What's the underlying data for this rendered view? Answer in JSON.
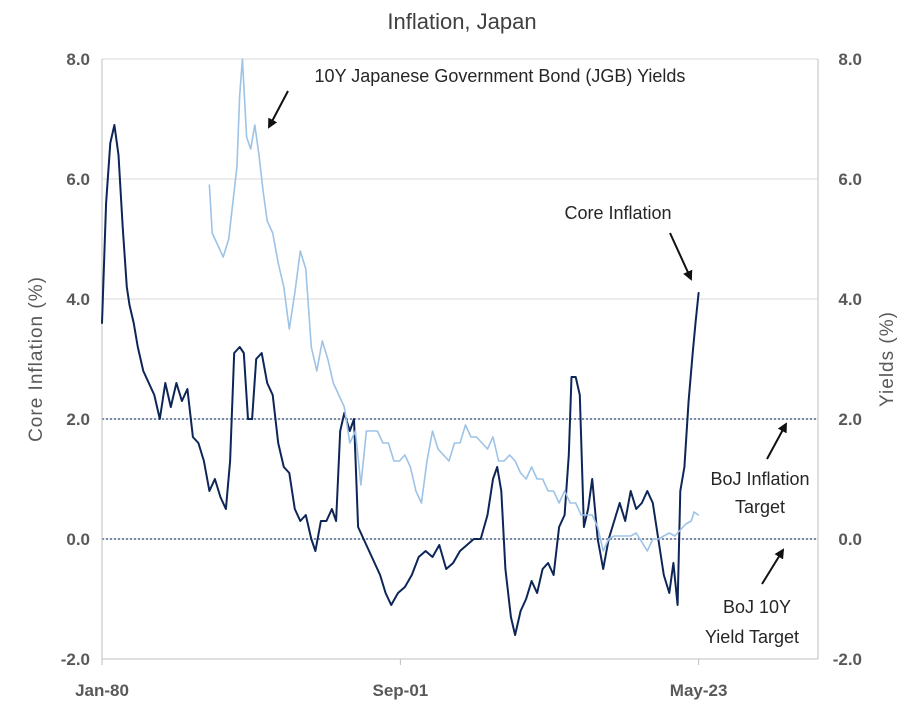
{
  "chart_data": {
    "type": "line",
    "title": "Inflation, Japan",
    "ylabel_left": "Core  Inflation  (%)",
    "ylabel_right": "Yields  (%)",
    "ylim": [
      -2.0,
      8.0
    ],
    "yticks_left": [
      "8.0",
      "6.0",
      "4.0",
      "2.0",
      "0.0",
      "-2.0"
    ],
    "yticks_right": [
      "8.0",
      "6.0",
      "4.0",
      "2.0",
      "0.0",
      "-2.0"
    ],
    "x_tick_labels": [
      "Jan-80",
      "Sep-01",
      "May-23"
    ],
    "x_tick_dates": [
      1980.0,
      2001.67,
      2023.33
    ],
    "xlim": [
      1980.0,
      2032.0
    ],
    "grid": "horizontal",
    "reference_lines": [
      {
        "y": 2.0,
        "label": "BoJ Inflation Target",
        "style": "dotted"
      },
      {
        "y": 0.0,
        "label": "BoJ 10Y Yield Target",
        "style": "dotted"
      }
    ],
    "annotations": [
      {
        "text": "10Y Japanese Government Bond (JGB) Yields"
      },
      {
        "text": "Core Inflation"
      },
      {
        "text_lines": [
          "BoJ Inflation",
          "Target"
        ]
      },
      {
        "text_lines": [
          "BoJ 10Y",
          "Yield Target"
        ]
      }
    ],
    "colors": {
      "core_inflation": "#0d2657",
      "jgb_yields": "#9dc3e6",
      "reference": "#2f4a7a",
      "grid": "#d9d9d9",
      "text": "#595959"
    },
    "series": [
      {
        "key": "core_inflation",
        "points": [
          [
            1980.0,
            3.6
          ],
          [
            1980.3,
            5.6
          ],
          [
            1980.6,
            6.6
          ],
          [
            1980.9,
            6.9
          ],
          [
            1981.2,
            6.4
          ],
          [
            1981.5,
            5.2
          ],
          [
            1981.8,
            4.2
          ],
          [
            1982.0,
            3.9
          ],
          [
            1982.3,
            3.6
          ],
          [
            1982.6,
            3.2
          ],
          [
            1983.0,
            2.8
          ],
          [
            1983.4,
            2.6
          ],
          [
            1983.8,
            2.4
          ],
          [
            1984.2,
            2.0
          ],
          [
            1984.6,
            2.6
          ],
          [
            1985.0,
            2.2
          ],
          [
            1985.4,
            2.6
          ],
          [
            1985.8,
            2.3
          ],
          [
            1986.2,
            2.5
          ],
          [
            1986.6,
            1.7
          ],
          [
            1987.0,
            1.6
          ],
          [
            1987.4,
            1.3
          ],
          [
            1987.8,
            0.8
          ],
          [
            1988.2,
            1.0
          ],
          [
            1988.6,
            0.7
          ],
          [
            1989.0,
            0.5
          ],
          [
            1989.3,
            1.3
          ],
          [
            1989.6,
            3.1
          ],
          [
            1990.0,
            3.2
          ],
          [
            1990.3,
            3.1
          ],
          [
            1990.6,
            2.0
          ],
          [
            1990.9,
            2.0
          ],
          [
            1991.2,
            3.0
          ],
          [
            1991.6,
            3.1
          ],
          [
            1992.0,
            2.6
          ],
          [
            1992.4,
            2.4
          ],
          [
            1992.8,
            1.6
          ],
          [
            1993.2,
            1.2
          ],
          [
            1993.6,
            1.1
          ],
          [
            1994.0,
            0.5
          ],
          [
            1994.4,
            0.3
          ],
          [
            1994.8,
            0.4
          ],
          [
            1995.2,
            0.0
          ],
          [
            1995.5,
            -0.2
          ],
          [
            1995.9,
            0.3
          ],
          [
            1996.3,
            0.3
          ],
          [
            1996.7,
            0.5
          ],
          [
            1997.0,
            0.3
          ],
          [
            1997.3,
            1.8
          ],
          [
            1997.6,
            2.1
          ],
          [
            1998.0,
            1.8
          ],
          [
            1998.3,
            2.0
          ],
          [
            1998.6,
            0.2
          ],
          [
            1999.0,
            0.0
          ],
          [
            1999.4,
            -0.2
          ],
          [
            1999.8,
            -0.4
          ],
          [
            2000.2,
            -0.6
          ],
          [
            2000.6,
            -0.9
          ],
          [
            2001.0,
            -1.1
          ],
          [
            2001.5,
            -0.9
          ],
          [
            2002.0,
            -0.8
          ],
          [
            2002.5,
            -0.6
          ],
          [
            2003.0,
            -0.3
          ],
          [
            2003.5,
            -0.2
          ],
          [
            2004.0,
            -0.3
          ],
          [
            2004.5,
            -0.1
          ],
          [
            2005.0,
            -0.5
          ],
          [
            2005.5,
            -0.4
          ],
          [
            2006.0,
            -0.2
          ],
          [
            2006.5,
            -0.1
          ],
          [
            2007.0,
            0.0
          ],
          [
            2007.5,
            0.0
          ],
          [
            2008.0,
            0.4
          ],
          [
            2008.4,
            1.0
          ],
          [
            2008.7,
            1.2
          ],
          [
            2009.0,
            0.8
          ],
          [
            2009.3,
            -0.5
          ],
          [
            2009.7,
            -1.3
          ],
          [
            2010.0,
            -1.6
          ],
          [
            2010.4,
            -1.2
          ],
          [
            2010.8,
            -1.0
          ],
          [
            2011.2,
            -0.7
          ],
          [
            2011.6,
            -0.9
          ],
          [
            2012.0,
            -0.5
          ],
          [
            2012.4,
            -0.4
          ],
          [
            2012.8,
            -0.6
          ],
          [
            2013.2,
            0.2
          ],
          [
            2013.6,
            0.4
          ],
          [
            2013.9,
            1.4
          ],
          [
            2014.1,
            2.7
          ],
          [
            2014.4,
            2.7
          ],
          [
            2014.7,
            2.4
          ],
          [
            2015.0,
            0.2
          ],
          [
            2015.3,
            0.5
          ],
          [
            2015.6,
            1.0
          ],
          [
            2016.0,
            0.0
          ],
          [
            2016.4,
            -0.5
          ],
          [
            2016.8,
            0.0
          ],
          [
            2017.2,
            0.3
          ],
          [
            2017.6,
            0.6
          ],
          [
            2018.0,
            0.3
          ],
          [
            2018.4,
            0.8
          ],
          [
            2018.8,
            0.5
          ],
          [
            2019.2,
            0.6
          ],
          [
            2019.6,
            0.8
          ],
          [
            2020.0,
            0.6
          ],
          [
            2020.4,
            0.0
          ],
          [
            2020.8,
            -0.6
          ],
          [
            2021.2,
            -0.9
          ],
          [
            2021.5,
            -0.4
          ],
          [
            2021.8,
            -1.1
          ],
          [
            2022.0,
            0.8
          ],
          [
            2022.3,
            1.2
          ],
          [
            2022.6,
            2.3
          ],
          [
            2022.9,
            3.1
          ],
          [
            2023.1,
            3.6
          ],
          [
            2023.33,
            4.1
          ]
        ]
      },
      {
        "key": "jgb_yields",
        "points": [
          [
            1987.8,
            5.9
          ],
          [
            1988.0,
            5.1
          ],
          [
            1988.4,
            4.9
          ],
          [
            1988.8,
            4.7
          ],
          [
            1989.2,
            5.0
          ],
          [
            1989.5,
            5.6
          ],
          [
            1989.8,
            6.2
          ],
          [
            1990.0,
            7.4
          ],
          [
            1990.2,
            8.0
          ],
          [
            1990.5,
            6.7
          ],
          [
            1990.8,
            6.5
          ],
          [
            1991.1,
            6.9
          ],
          [
            1991.4,
            6.4
          ],
          [
            1991.7,
            5.8
          ],
          [
            1992.0,
            5.3
          ],
          [
            1992.4,
            5.1
          ],
          [
            1992.8,
            4.6
          ],
          [
            1993.2,
            4.2
          ],
          [
            1993.6,
            3.5
          ],
          [
            1994.0,
            4.1
          ],
          [
            1994.4,
            4.8
          ],
          [
            1994.8,
            4.5
          ],
          [
            1995.2,
            3.2
          ],
          [
            1995.6,
            2.8
          ],
          [
            1996.0,
            3.3
          ],
          [
            1996.4,
            3.0
          ],
          [
            1996.8,
            2.6
          ],
          [
            1997.2,
            2.4
          ],
          [
            1997.6,
            2.2
          ],
          [
            1998.0,
            1.6
          ],
          [
            1998.4,
            1.8
          ],
          [
            1998.8,
            0.9
          ],
          [
            1999.2,
            1.8
          ],
          [
            1999.6,
            1.8
          ],
          [
            2000.0,
            1.8
          ],
          [
            2000.4,
            1.6
          ],
          [
            2000.8,
            1.6
          ],
          [
            2001.2,
            1.3
          ],
          [
            2001.6,
            1.3
          ],
          [
            2002.0,
            1.4
          ],
          [
            2002.4,
            1.2
          ],
          [
            2002.8,
            0.8
          ],
          [
            2003.2,
            0.6
          ],
          [
            2003.6,
            1.3
          ],
          [
            2004.0,
            1.8
          ],
          [
            2004.4,
            1.5
          ],
          [
            2004.8,
            1.4
          ],
          [
            2005.2,
            1.3
          ],
          [
            2005.6,
            1.6
          ],
          [
            2006.0,
            1.6
          ],
          [
            2006.4,
            1.9
          ],
          [
            2006.8,
            1.7
          ],
          [
            2007.2,
            1.7
          ],
          [
            2007.6,
            1.6
          ],
          [
            2008.0,
            1.5
          ],
          [
            2008.4,
            1.7
          ],
          [
            2008.8,
            1.3
          ],
          [
            2009.2,
            1.3
          ],
          [
            2009.6,
            1.4
          ],
          [
            2010.0,
            1.3
          ],
          [
            2010.4,
            1.1
          ],
          [
            2010.8,
            1.0
          ],
          [
            2011.2,
            1.2
          ],
          [
            2011.6,
            1.0
          ],
          [
            2012.0,
            1.0
          ],
          [
            2012.4,
            0.8
          ],
          [
            2012.8,
            0.8
          ],
          [
            2013.2,
            0.6
          ],
          [
            2013.6,
            0.8
          ],
          [
            2014.0,
            0.6
          ],
          [
            2014.4,
            0.6
          ],
          [
            2014.8,
            0.4
          ],
          [
            2015.2,
            0.4
          ],
          [
            2015.6,
            0.4
          ],
          [
            2016.0,
            0.2
          ],
          [
            2016.4,
            -0.2
          ],
          [
            2016.8,
            0.0
          ],
          [
            2017.2,
            0.05
          ],
          [
            2017.6,
            0.05
          ],
          [
            2018.0,
            0.05
          ],
          [
            2018.4,
            0.05
          ],
          [
            2018.8,
            0.1
          ],
          [
            2019.2,
            -0.05
          ],
          [
            2019.6,
            -0.2
          ],
          [
            2020.0,
            0.0
          ],
          [
            2020.4,
            0.0
          ],
          [
            2020.8,
            0.05
          ],
          [
            2021.2,
            0.1
          ],
          [
            2021.6,
            0.05
          ],
          [
            2022.0,
            0.15
          ],
          [
            2022.4,
            0.25
          ],
          [
            2022.8,
            0.3
          ],
          [
            2023.0,
            0.45
          ],
          [
            2023.3,
            0.4
          ]
        ]
      }
    ]
  }
}
